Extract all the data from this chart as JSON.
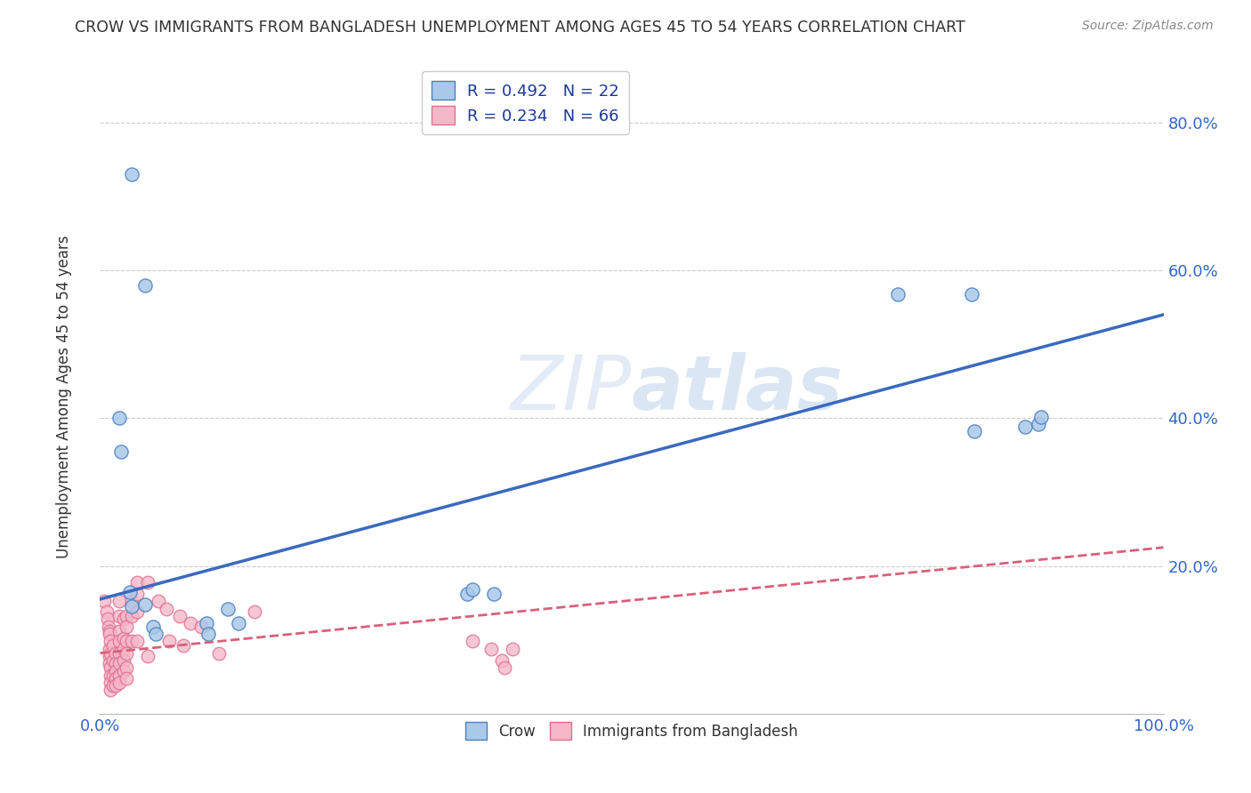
{
  "title": "CROW VS IMMIGRANTS FROM BANGLADESH UNEMPLOYMENT AMONG AGES 45 TO 54 YEARS CORRELATION CHART",
  "source": "Source: ZipAtlas.com",
  "ylabel": "Unemployment Among Ages 45 to 54 years",
  "xlim": [
    0,
    1.0
  ],
  "ylim": [
    0,
    0.88
  ],
  "watermark_zip": "ZIP",
  "watermark_atlas": "atlas",
  "crow_R": 0.492,
  "crow_N": 22,
  "bangladesh_R": 0.234,
  "bangladesh_N": 66,
  "crow_color": "#aac8e8",
  "bangladesh_color": "#f5b8c8",
  "crow_edge_color": "#4a80c0",
  "bangladesh_edge_color": "#e07090",
  "crow_line_color": "#3a6abf",
  "bangladesh_line_color": "#d8607a",
  "crow_scatter": [
    [
      0.03,
      0.73
    ],
    [
      0.042,
      0.58
    ],
    [
      0.018,
      0.4
    ],
    [
      0.02,
      0.355
    ],
    [
      0.028,
      0.165
    ],
    [
      0.03,
      0.145
    ],
    [
      0.042,
      0.148
    ],
    [
      0.05,
      0.118
    ],
    [
      0.052,
      0.108
    ],
    [
      0.1,
      0.122
    ],
    [
      0.102,
      0.108
    ],
    [
      0.12,
      0.142
    ],
    [
      0.13,
      0.122
    ],
    [
      0.345,
      0.162
    ],
    [
      0.37,
      0.162
    ],
    [
      0.35,
      0.168
    ],
    [
      0.75,
      0.568
    ],
    [
      0.82,
      0.568
    ],
    [
      0.822,
      0.382
    ],
    [
      0.87,
      0.388
    ],
    [
      0.882,
      0.392
    ],
    [
      0.885,
      0.402
    ]
  ],
  "bangladesh_scatter": [
    [
      0.004,
      0.152
    ],
    [
      0.006,
      0.138
    ],
    [
      0.007,
      0.128
    ],
    [
      0.008,
      0.118
    ],
    [
      0.009,
      0.112
    ],
    [
      0.009,
      0.108
    ],
    [
      0.009,
      0.088
    ],
    [
      0.009,
      0.078
    ],
    [
      0.009,
      0.068
    ],
    [
      0.01,
      0.098
    ],
    [
      0.01,
      0.082
    ],
    [
      0.01,
      0.062
    ],
    [
      0.01,
      0.052
    ],
    [
      0.01,
      0.042
    ],
    [
      0.01,
      0.032
    ],
    [
      0.012,
      0.092
    ],
    [
      0.012,
      0.072
    ],
    [
      0.012,
      0.052
    ],
    [
      0.012,
      0.038
    ],
    [
      0.015,
      0.082
    ],
    [
      0.015,
      0.068
    ],
    [
      0.015,
      0.058
    ],
    [
      0.015,
      0.048
    ],
    [
      0.015,
      0.038
    ],
    [
      0.018,
      0.152
    ],
    [
      0.018,
      0.132
    ],
    [
      0.018,
      0.112
    ],
    [
      0.018,
      0.098
    ],
    [
      0.018,
      0.082
    ],
    [
      0.018,
      0.068
    ],
    [
      0.018,
      0.052
    ],
    [
      0.018,
      0.042
    ],
    [
      0.022,
      0.128
    ],
    [
      0.022,
      0.102
    ],
    [
      0.022,
      0.088
    ],
    [
      0.022,
      0.072
    ],
    [
      0.022,
      0.058
    ],
    [
      0.025,
      0.132
    ],
    [
      0.025,
      0.118
    ],
    [
      0.025,
      0.098
    ],
    [
      0.025,
      0.082
    ],
    [
      0.025,
      0.062
    ],
    [
      0.025,
      0.048
    ],
    [
      0.03,
      0.152
    ],
    [
      0.03,
      0.132
    ],
    [
      0.03,
      0.098
    ],
    [
      0.035,
      0.178
    ],
    [
      0.035,
      0.162
    ],
    [
      0.035,
      0.138
    ],
    [
      0.035,
      0.098
    ],
    [
      0.045,
      0.178
    ],
    [
      0.045,
      0.078
    ],
    [
      0.055,
      0.152
    ],
    [
      0.062,
      0.142
    ],
    [
      0.065,
      0.098
    ],
    [
      0.075,
      0.132
    ],
    [
      0.078,
      0.092
    ],
    [
      0.085,
      0.122
    ],
    [
      0.095,
      0.118
    ],
    [
      0.112,
      0.082
    ],
    [
      0.145,
      0.138
    ],
    [
      0.35,
      0.098
    ],
    [
      0.368,
      0.088
    ],
    [
      0.378,
      0.072
    ],
    [
      0.38,
      0.062
    ],
    [
      0.388,
      0.088
    ]
  ],
  "crow_trendline_x": [
    0.0,
    1.0
  ],
  "crow_trendline_y": [
    0.155,
    0.54
  ],
  "bangladesh_trendline_x": [
    0.0,
    1.0
  ],
  "bangladesh_trendline_y": [
    0.082,
    0.225
  ]
}
